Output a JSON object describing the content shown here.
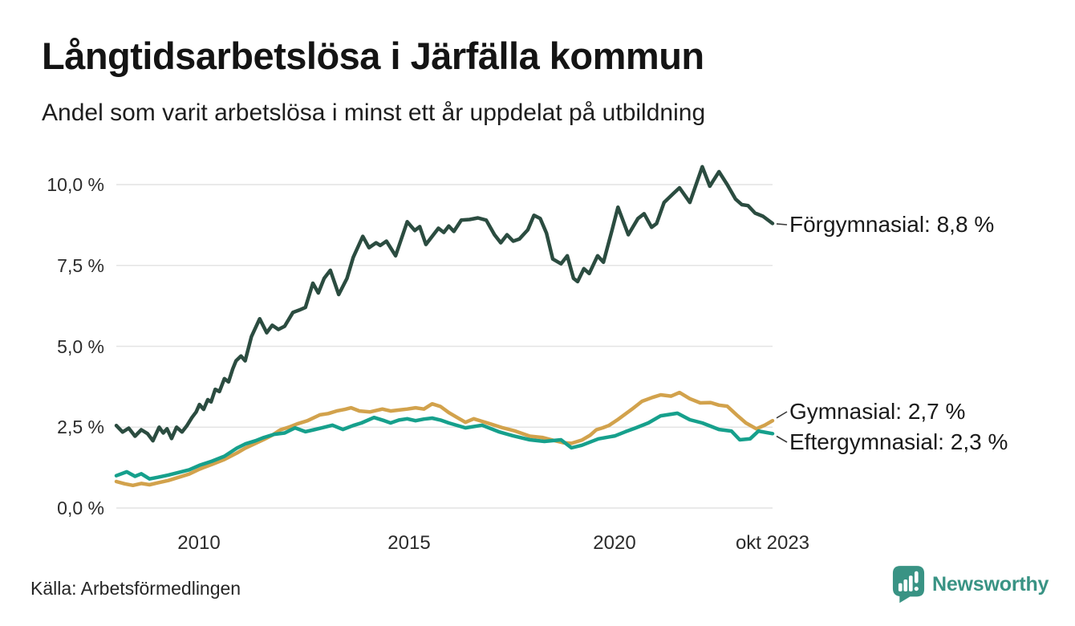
{
  "chart_data": {
    "type": "line",
    "title": "Långtidsarbetslösa i Järfälla kommun",
    "subtitle": "Andel som varit arbetslösa i minst ett år uppdelat på utbildning",
    "source": "Källa: Arbetsförmedlingen",
    "brand": "Newsworthy",
    "brand_color": "#399384",
    "grid_color": "#e4e4e4",
    "connector_color": "#3a3a3a",
    "x_range": [
      2008.0,
      2023.79
    ],
    "ylim": [
      0,
      10.75
    ],
    "grid": true,
    "legend_position": "right-end-labels",
    "y_tick_values": [
      0,
      2.5,
      5,
      7.5,
      10
    ],
    "y_ticks": [
      "10,0 %",
      "7,5 %",
      "5,0 %",
      "2,5 %",
      "0,0 %"
    ],
    "x_ticks": [
      {
        "label": "2010",
        "t": 2010
      },
      {
        "label": "2015",
        "t": 2015
      },
      {
        "label": "2020",
        "t": 2020
      },
      {
        "label": "okt 2023",
        "t": 2023.79
      }
    ],
    "series": [
      {
        "name": "Förgymnasial",
        "end_label": "Förgymnasial: 8,8 %",
        "end_value_text": "8,8 %",
        "color": "#2b4c40",
        "points": [
          [
            2008.0,
            2.55
          ],
          [
            2008.15,
            2.35
          ],
          [
            2008.3,
            2.47
          ],
          [
            2008.45,
            2.22
          ],
          [
            2008.6,
            2.42
          ],
          [
            2008.75,
            2.3
          ],
          [
            2008.88,
            2.08
          ],
          [
            2009.03,
            2.5
          ],
          [
            2009.13,
            2.32
          ],
          [
            2009.22,
            2.45
          ],
          [
            2009.33,
            2.15
          ],
          [
            2009.45,
            2.5
          ],
          [
            2009.58,
            2.35
          ],
          [
            2009.7,
            2.55
          ],
          [
            2009.82,
            2.8
          ],
          [
            2009.92,
            2.97
          ],
          [
            2010.0,
            3.2
          ],
          [
            2010.1,
            3.05
          ],
          [
            2010.2,
            3.35
          ],
          [
            2010.28,
            3.28
          ],
          [
            2010.38,
            3.67
          ],
          [
            2010.48,
            3.6
          ],
          [
            2010.6,
            4.0
          ],
          [
            2010.7,
            3.9
          ],
          [
            2010.8,
            4.3
          ],
          [
            2010.88,
            4.55
          ],
          [
            2011.0,
            4.7
          ],
          [
            2011.1,
            4.55
          ],
          [
            2011.25,
            5.3
          ],
          [
            2011.45,
            5.85
          ],
          [
            2011.62,
            5.42
          ],
          [
            2011.75,
            5.65
          ],
          [
            2011.9,
            5.52
          ],
          [
            2012.05,
            5.62
          ],
          [
            2012.25,
            6.05
          ],
          [
            2012.4,
            6.12
          ],
          [
            2012.55,
            6.2
          ],
          [
            2012.73,
            6.95
          ],
          [
            2012.86,
            6.65
          ],
          [
            2013.0,
            7.1
          ],
          [
            2013.15,
            7.35
          ],
          [
            2013.35,
            6.6
          ],
          [
            2013.55,
            7.1
          ],
          [
            2013.7,
            7.75
          ],
          [
            2013.93,
            8.4
          ],
          [
            2014.08,
            8.05
          ],
          [
            2014.25,
            8.2
          ],
          [
            2014.35,
            8.12
          ],
          [
            2014.5,
            8.25
          ],
          [
            2014.72,
            7.8
          ],
          [
            2015.0,
            8.85
          ],
          [
            2015.18,
            8.58
          ],
          [
            2015.3,
            8.7
          ],
          [
            2015.45,
            8.15
          ],
          [
            2015.6,
            8.4
          ],
          [
            2015.75,
            8.65
          ],
          [
            2015.88,
            8.52
          ],
          [
            2016.0,
            8.72
          ],
          [
            2016.12,
            8.55
          ],
          [
            2016.3,
            8.9
          ],
          [
            2016.5,
            8.92
          ],
          [
            2016.7,
            8.97
          ],
          [
            2016.9,
            8.9
          ],
          [
            2017.1,
            8.45
          ],
          [
            2017.25,
            8.2
          ],
          [
            2017.4,
            8.45
          ],
          [
            2017.55,
            8.25
          ],
          [
            2017.7,
            8.32
          ],
          [
            2017.9,
            8.6
          ],
          [
            2018.05,
            9.05
          ],
          [
            2018.2,
            8.95
          ],
          [
            2018.35,
            8.5
          ],
          [
            2018.5,
            7.7
          ],
          [
            2018.7,
            7.55
          ],
          [
            2018.85,
            7.8
          ],
          [
            2019.0,
            7.1
          ],
          [
            2019.1,
            7.0
          ],
          [
            2019.25,
            7.4
          ],
          [
            2019.38,
            7.25
          ],
          [
            2019.58,
            7.8
          ],
          [
            2019.72,
            7.6
          ],
          [
            2019.93,
            8.6
          ],
          [
            2020.07,
            9.3
          ],
          [
            2020.32,
            8.45
          ],
          [
            2020.55,
            8.95
          ],
          [
            2020.7,
            9.1
          ],
          [
            2020.88,
            8.68
          ],
          [
            2021.0,
            8.8
          ],
          [
            2021.18,
            9.45
          ],
          [
            2021.4,
            9.72
          ],
          [
            2021.55,
            9.9
          ],
          [
            2021.8,
            9.45
          ],
          [
            2022.1,
            10.55
          ],
          [
            2022.28,
            9.95
          ],
          [
            2022.5,
            10.4
          ],
          [
            2022.7,
            10.0
          ],
          [
            2022.9,
            9.55
          ],
          [
            2023.05,
            9.38
          ],
          [
            2023.2,
            9.35
          ],
          [
            2023.37,
            9.12
          ],
          [
            2023.56,
            9.02
          ],
          [
            2023.79,
            8.8
          ]
        ]
      },
      {
        "name": "Gymnasial",
        "end_label": "Gymnasial: 2,7 %",
        "end_value_text": "2,7 %",
        "color": "#d2a24c",
        "points": [
          [
            2008.0,
            0.82
          ],
          [
            2008.2,
            0.75
          ],
          [
            2008.4,
            0.7
          ],
          [
            2008.6,
            0.76
          ],
          [
            2008.8,
            0.72
          ],
          [
            2009.0,
            0.78
          ],
          [
            2009.25,
            0.85
          ],
          [
            2009.5,
            0.95
          ],
          [
            2009.75,
            1.05
          ],
          [
            2010.0,
            1.2
          ],
          [
            2010.3,
            1.35
          ],
          [
            2010.6,
            1.5
          ],
          [
            2010.9,
            1.7
          ],
          [
            2011.1,
            1.85
          ],
          [
            2011.35,
            2.0
          ],
          [
            2011.55,
            2.12
          ],
          [
            2011.75,
            2.25
          ],
          [
            2011.95,
            2.42
          ],
          [
            2012.15,
            2.5
          ],
          [
            2012.35,
            2.6
          ],
          [
            2012.6,
            2.7
          ],
          [
            2012.9,
            2.88
          ],
          [
            2013.1,
            2.92
          ],
          [
            2013.3,
            3.0
          ],
          [
            2013.5,
            3.05
          ],
          [
            2013.65,
            3.1
          ],
          [
            2013.85,
            3.0
          ],
          [
            2014.1,
            2.97
          ],
          [
            2014.4,
            3.06
          ],
          [
            2014.6,
            3.0
          ],
          [
            2014.8,
            3.03
          ],
          [
            2015.0,
            3.06
          ],
          [
            2015.2,
            3.1
          ],
          [
            2015.4,
            3.06
          ],
          [
            2015.6,
            3.22
          ],
          [
            2015.8,
            3.14
          ],
          [
            2016.0,
            2.95
          ],
          [
            2016.2,
            2.8
          ],
          [
            2016.4,
            2.65
          ],
          [
            2016.6,
            2.76
          ],
          [
            2016.8,
            2.68
          ],
          [
            2017.0,
            2.6
          ],
          [
            2017.3,
            2.48
          ],
          [
            2017.6,
            2.38
          ],
          [
            2017.95,
            2.22
          ],
          [
            2018.25,
            2.18
          ],
          [
            2018.5,
            2.1
          ],
          [
            2018.75,
            2.02
          ],
          [
            2018.95,
            2.0
          ],
          [
            2019.2,
            2.1
          ],
          [
            2019.4,
            2.25
          ],
          [
            2019.55,
            2.42
          ],
          [
            2019.7,
            2.48
          ],
          [
            2019.85,
            2.55
          ],
          [
            2020.05,
            2.72
          ],
          [
            2020.4,
            3.05
          ],
          [
            2020.65,
            3.3
          ],
          [
            2020.9,
            3.42
          ],
          [
            2021.1,
            3.5
          ],
          [
            2021.35,
            3.46
          ],
          [
            2021.55,
            3.57
          ],
          [
            2021.8,
            3.38
          ],
          [
            2022.05,
            3.25
          ],
          [
            2022.3,
            3.26
          ],
          [
            2022.5,
            3.18
          ],
          [
            2022.7,
            3.15
          ],
          [
            2022.95,
            2.85
          ],
          [
            2023.15,
            2.63
          ],
          [
            2023.4,
            2.45
          ],
          [
            2023.6,
            2.56
          ],
          [
            2023.79,
            2.7
          ]
        ]
      },
      {
        "name": "Eftergymnasial",
        "end_label": "Eftergymnasial: 2,3 %",
        "end_value_text": "2,3 %",
        "color": "#16a08c",
        "points": [
          [
            2008.0,
            1.0
          ],
          [
            2008.25,
            1.12
          ],
          [
            2008.45,
            0.98
          ],
          [
            2008.6,
            1.06
          ],
          [
            2008.8,
            0.9
          ],
          [
            2009.0,
            0.95
          ],
          [
            2009.25,
            1.02
          ],
          [
            2009.5,
            1.1
          ],
          [
            2009.75,
            1.18
          ],
          [
            2010.0,
            1.32
          ],
          [
            2010.3,
            1.45
          ],
          [
            2010.6,
            1.6
          ],
          [
            2010.9,
            1.85
          ],
          [
            2011.1,
            1.98
          ],
          [
            2011.35,
            2.08
          ],
          [
            2011.55,
            2.18
          ],
          [
            2011.8,
            2.28
          ],
          [
            2012.05,
            2.32
          ],
          [
            2012.3,
            2.48
          ],
          [
            2012.55,
            2.36
          ],
          [
            2012.75,
            2.42
          ],
          [
            2012.95,
            2.48
          ],
          [
            2013.2,
            2.56
          ],
          [
            2013.45,
            2.43
          ],
          [
            2013.7,
            2.55
          ],
          [
            2013.9,
            2.63
          ],
          [
            2014.2,
            2.8
          ],
          [
            2014.45,
            2.7
          ],
          [
            2014.6,
            2.63
          ],
          [
            2014.8,
            2.72
          ],
          [
            2015.0,
            2.76
          ],
          [
            2015.2,
            2.7
          ],
          [
            2015.4,
            2.75
          ],
          [
            2015.6,
            2.78
          ],
          [
            2015.8,
            2.72
          ],
          [
            2016.0,
            2.63
          ],
          [
            2016.4,
            2.48
          ],
          [
            2016.8,
            2.56
          ],
          [
            2017.2,
            2.36
          ],
          [
            2017.55,
            2.23
          ],
          [
            2017.95,
            2.11
          ],
          [
            2018.3,
            2.06
          ],
          [
            2018.7,
            2.11
          ],
          [
            2018.95,
            1.86
          ],
          [
            2019.2,
            1.94
          ],
          [
            2019.6,
            2.14
          ],
          [
            2020.0,
            2.23
          ],
          [
            2020.25,
            2.36
          ],
          [
            2020.5,
            2.48
          ],
          [
            2020.8,
            2.63
          ],
          [
            2021.1,
            2.85
          ],
          [
            2021.5,
            2.93
          ],
          [
            2021.8,
            2.73
          ],
          [
            2022.1,
            2.63
          ],
          [
            2022.5,
            2.43
          ],
          [
            2022.8,
            2.38
          ],
          [
            2023.0,
            2.11
          ],
          [
            2023.25,
            2.14
          ],
          [
            2023.45,
            2.38
          ],
          [
            2023.79,
            2.3
          ]
        ]
      }
    ]
  }
}
